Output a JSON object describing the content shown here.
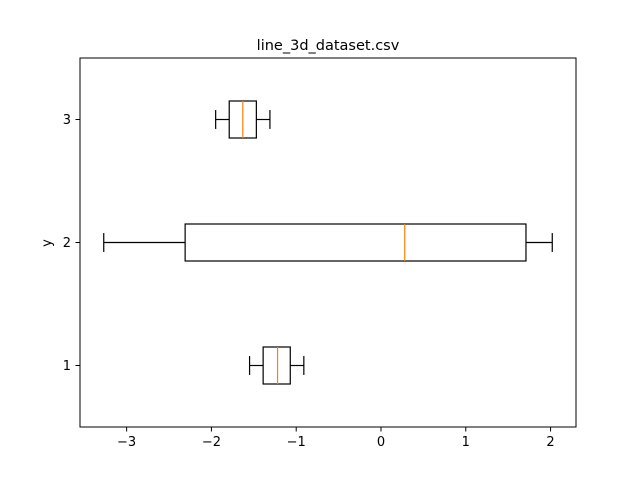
{
  "chart_data": {
    "type": "boxplot",
    "orientation": "horizontal",
    "title": "line_3d_dataset.csv",
    "xlabel": "",
    "ylabel": "y",
    "xlim": [
      -3.55,
      2.3
    ],
    "ylim": [
      0.5,
      3.5
    ],
    "x_ticks": [
      -3,
      -2,
      -1,
      0,
      1,
      2
    ],
    "x_tick_labels": [
      "−3",
      "−2",
      "−1",
      "0",
      "1",
      "2"
    ],
    "grid": false,
    "legend": "none",
    "series": [
      {
        "name": "1",
        "position": 1,
        "whisker_low": -1.55,
        "q1": -1.39,
        "median": -1.22,
        "q3": -1.07,
        "whisker_high": -0.91
      },
      {
        "name": "2",
        "position": 2,
        "whisker_low": -3.27,
        "q1": -2.31,
        "median": 0.28,
        "q3": 1.71,
        "whisker_high": 2.02
      },
      {
        "name": "3",
        "position": 3,
        "whisker_low": -1.95,
        "q1": -1.79,
        "median": -1.63,
        "q3": -1.47,
        "whisker_high": -1.31
      }
    ],
    "colors": {
      "box": "#000000",
      "median": "#ff7f0e",
      "axes": "#000000"
    }
  }
}
